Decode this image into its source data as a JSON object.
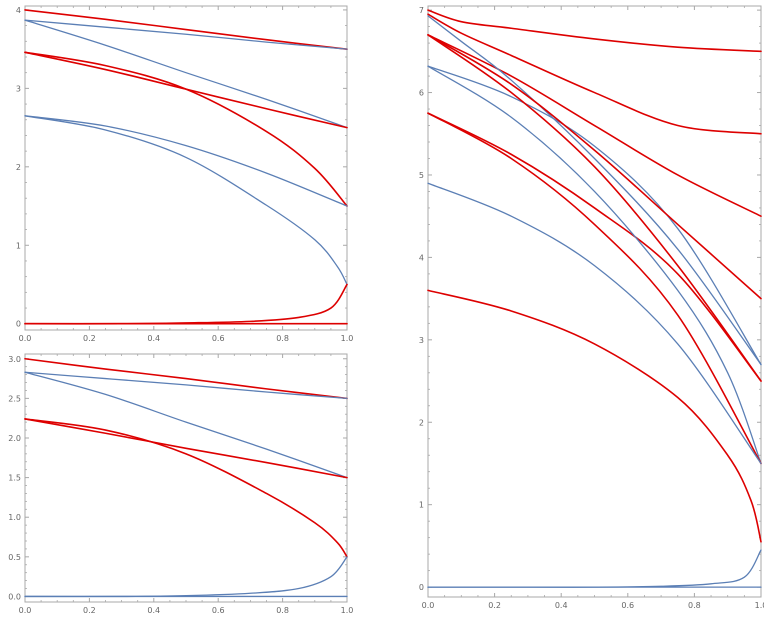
{
  "colors": {
    "red_series": "#dd0000",
    "blue_series": "#5b7fb5",
    "frame": "#a8a8a8",
    "tick_text": "#666666"
  },
  "chart_data": [
    {
      "id": "top-left",
      "type": "line",
      "title": "",
      "xlabel": "",
      "ylabel": "",
      "xlim": [
        0,
        1
      ],
      "ylim": [
        -0.08,
        4.05
      ],
      "x_ticks": [
        "0.0",
        "0.2",
        "0.4",
        "0.6",
        "0.8",
        "1.0"
      ],
      "y_ticks": [
        "0",
        "1",
        "2",
        "3",
        "4"
      ],
      "grid": false,
      "legend": "none",
      "series": [
        {
          "color": "red",
          "x": [
            0,
            0.25,
            0.5,
            0.75,
            1.0
          ],
          "y": [
            4.0,
            3.88,
            3.75,
            3.62,
            3.5
          ]
        },
        {
          "color": "blue",
          "x": [
            0,
            0.25,
            0.5,
            0.75,
            1.0
          ],
          "y": [
            3.87,
            3.78,
            3.69,
            3.59,
            3.5
          ]
        },
        {
          "color": "blue",
          "x": [
            0,
            0.25,
            0.5,
            0.75,
            1.0
          ],
          "y": [
            3.87,
            3.55,
            3.2,
            2.86,
            2.5
          ]
        },
        {
          "color": "red",
          "x": [
            0,
            0.25,
            0.5,
            0.75,
            1.0
          ],
          "y": [
            3.46,
            3.24,
            2.99,
            2.74,
            2.5
          ]
        },
        {
          "color": "red",
          "x": [
            0,
            0.25,
            0.5,
            0.75,
            0.9,
            1.0
          ],
          "y": [
            3.46,
            3.29,
            2.99,
            2.45,
            1.98,
            1.5
          ]
        },
        {
          "color": "blue",
          "x": [
            0,
            0.25,
            0.5,
            0.75,
            1.0
          ],
          "y": [
            2.65,
            2.52,
            2.27,
            1.92,
            1.5
          ]
        },
        {
          "color": "blue",
          "x": [
            0,
            0.25,
            0.5,
            0.75,
            0.9,
            0.97,
            1.0
          ],
          "y": [
            2.65,
            2.47,
            2.12,
            1.51,
            1.07,
            0.73,
            0.5
          ]
        },
        {
          "color": "red",
          "x": [
            0,
            0.3,
            0.5,
            0.7,
            0.85,
            0.95,
            1.0
          ],
          "y": [
            0.0,
            0.0,
            0.01,
            0.03,
            0.08,
            0.2,
            0.5
          ]
        },
        {
          "color": "red",
          "x": [
            0,
            1.0
          ],
          "y": [
            0.0,
            0.0
          ]
        }
      ]
    },
    {
      "id": "bottom-left",
      "type": "line",
      "title": "",
      "xlabel": "",
      "ylabel": "",
      "xlim": [
        0,
        1
      ],
      "ylim": [
        -0.07,
        3.06
      ],
      "x_ticks": [
        "0.0",
        "0.2",
        "0.4",
        "0.6",
        "0.8",
        "1.0"
      ],
      "y_ticks": [
        "0.0",
        "0.5",
        "1.0",
        "1.5",
        "2.0",
        "2.5",
        "3.0"
      ],
      "grid": false,
      "legend": "none",
      "series": [
        {
          "color": "red",
          "x": [
            0,
            0.25,
            0.5,
            0.75,
            1.0
          ],
          "y": [
            3.0,
            2.87,
            2.75,
            2.62,
            2.5
          ]
        },
        {
          "color": "blue",
          "x": [
            0,
            0.25,
            0.5,
            0.75,
            1.0
          ],
          "y": [
            2.83,
            2.75,
            2.67,
            2.58,
            2.5
          ]
        },
        {
          "color": "blue",
          "x": [
            0,
            0.25,
            0.5,
            0.75,
            1.0
          ],
          "y": [
            2.83,
            2.55,
            2.2,
            1.86,
            1.5
          ]
        },
        {
          "color": "red",
          "x": [
            0,
            0.25,
            0.5,
            0.75,
            1.0
          ],
          "y": [
            2.24,
            2.06,
            1.87,
            1.69,
            1.5
          ]
        },
        {
          "color": "red",
          "x": [
            0,
            0.25,
            0.5,
            0.75,
            0.9,
            0.97,
            1.0
          ],
          "y": [
            2.24,
            2.1,
            1.8,
            1.3,
            0.93,
            0.68,
            0.5
          ]
        },
        {
          "color": "blue",
          "x": [
            0,
            0.3,
            0.5,
            0.7,
            0.85,
            0.95,
            1.0
          ],
          "y": [
            0.0,
            0.0,
            0.01,
            0.04,
            0.1,
            0.25,
            0.5
          ]
        },
        {
          "color": "blue",
          "x": [
            0,
            1.0
          ],
          "y": [
            0.0,
            0.0
          ]
        }
      ]
    },
    {
      "id": "right",
      "type": "line",
      "title": "",
      "xlabel": "",
      "ylabel": "",
      "xlim": [
        0,
        1
      ],
      "ylim": [
        -0.12,
        7.05
      ],
      "x_ticks": [
        "0.0",
        "0.2",
        "0.4",
        "0.6",
        "0.8",
        "1.0"
      ],
      "y_ticks": [
        "0",
        "1",
        "2",
        "3",
        "4",
        "5",
        "6",
        "7"
      ],
      "grid": false,
      "legend": "none",
      "series": [
        {
          "color": "red",
          "x": [
            0,
            0.1,
            0.25,
            0.5,
            0.75,
            1.0
          ],
          "y": [
            7.0,
            6.86,
            6.78,
            6.65,
            6.55,
            6.5
          ]
        },
        {
          "color": "red",
          "x": [
            0,
            0.1,
            0.25,
            0.5,
            0.75,
            1.0
          ],
          "y": [
            6.95,
            6.72,
            6.45,
            6.0,
            5.6,
            5.5
          ]
        },
        {
          "color": "red",
          "x": [
            0,
            0.25,
            0.5,
            0.75,
            1.0
          ],
          "y": [
            6.7,
            6.2,
            5.6,
            5.0,
            4.5
          ]
        },
        {
          "color": "blue",
          "x": [
            0,
            0.1,
            0.25,
            0.5,
            0.75,
            1.0
          ],
          "y": [
            6.93,
            6.62,
            6.15,
            5.2,
            4.1,
            2.7
          ]
        },
        {
          "color": "blue",
          "x": [
            0,
            0.25,
            0.5,
            0.75,
            1.0
          ],
          "y": [
            6.32,
            5.95,
            5.35,
            4.35,
            2.7
          ]
        },
        {
          "color": "red",
          "x": [
            0,
            0.25,
            0.5,
            0.75,
            1.0
          ],
          "y": [
            6.7,
            6.1,
            5.3,
            4.4,
            3.5
          ]
        },
        {
          "color": "red",
          "x": [
            0,
            0.25,
            0.5,
            0.75,
            1.0
          ],
          "y": [
            6.7,
            6.0,
            5.1,
            3.9,
            2.5
          ]
        },
        {
          "color": "red",
          "x": [
            0,
            0.25,
            0.5,
            0.75,
            1.0
          ],
          "y": [
            5.75,
            5.25,
            4.6,
            3.8,
            2.5
          ]
        },
        {
          "color": "blue",
          "x": [
            0,
            0.25,
            0.5,
            0.75,
            0.9,
            1.0
          ],
          "y": [
            6.32,
            5.7,
            4.8,
            3.6,
            2.6,
            1.5
          ]
        },
        {
          "color": "red",
          "x": [
            0,
            0.25,
            0.5,
            0.75,
            1.0
          ],
          "y": [
            5.75,
            5.2,
            4.4,
            3.3,
            1.5
          ]
        },
        {
          "color": "blue",
          "x": [
            0,
            0.25,
            0.5,
            0.75,
            1.0
          ],
          "y": [
            4.9,
            4.5,
            3.9,
            2.95,
            1.5
          ]
        },
        {
          "color": "red",
          "x": [
            0,
            0.25,
            0.5,
            0.75,
            0.9,
            0.97,
            1.0
          ],
          "y": [
            3.6,
            3.35,
            2.95,
            2.3,
            1.6,
            1.05,
            0.55
          ]
        },
        {
          "color": "blue",
          "x": [
            0,
            0.3,
            0.5,
            0.7,
            0.85,
            0.95,
            1.0
          ],
          "y": [
            0.0,
            0.0,
            0.0,
            0.01,
            0.04,
            0.12,
            0.45
          ]
        },
        {
          "color": "blue",
          "x": [
            0,
            1.0
          ],
          "y": [
            0.0,
            0.0
          ]
        }
      ]
    }
  ]
}
